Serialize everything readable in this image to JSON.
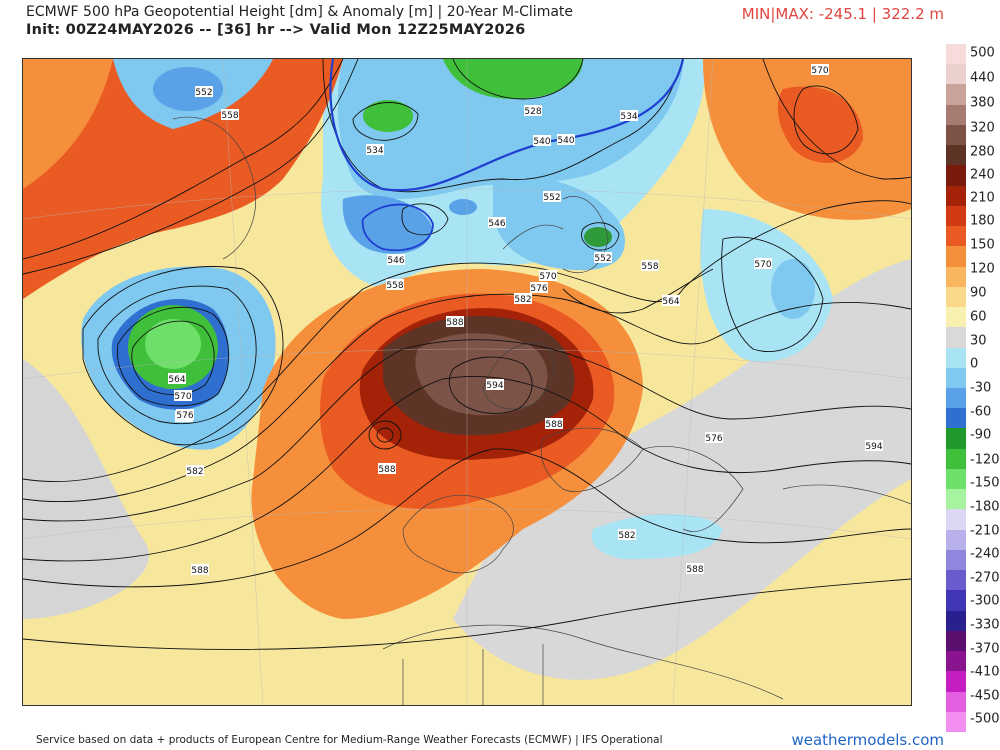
{
  "header": {
    "title": "ECMWF 500 hPa Geopotential Height [dm] & Anomaly [m] | 20-Year M-Climate",
    "init": "Init: 00Z24MAY2026 -- [36] hr --> Valid Mon 12Z25MAY2026",
    "minmax": "MIN|MAX: -245.1 | 322.2 m"
  },
  "colorbar": {
    "labels": [
      "500",
      "440",
      "380",
      "320",
      "280",
      "240",
      "210",
      "180",
      "150",
      "120",
      "90",
      "60",
      "30",
      "0",
      "-30",
      "-60",
      "-90",
      "-120",
      "-150",
      "-180",
      "-210",
      "-240",
      "-270",
      "-300",
      "-330",
      "-370",
      "-410",
      "-450",
      "-500"
    ],
    "colors": [
      "#f7dada",
      "#ead0cc",
      "#c9a39b",
      "#a57b72",
      "#7d5247",
      "#5e3426",
      "#7a1a0a",
      "#a32208",
      "#d03a14",
      "#ea5b24",
      "#f58f3c",
      "#f9b65e",
      "#fbd98a",
      "#f7f0b0",
      "#d9d9d9",
      "#a9e4f5",
      "#7fc8f0",
      "#5aa2e8",
      "#2f6fd0",
      "#1f9a2a",
      "#3fbf3a",
      "#6ee06a",
      "#a8f3a0",
      "#dcd8f3",
      "#b8b0ea",
      "#8f86dd",
      "#6a5ccf",
      "#4136b5",
      "#2a1f8e",
      "#5a0f6e",
      "#8a1490",
      "#c41ec2",
      "#e35ee0",
      "#f28ef0"
    ]
  },
  "map": {
    "contour_labels": [
      "552",
      "558",
      "534",
      "528",
      "534",
      "540",
      "546",
      "546",
      "552",
      "552",
      "540",
      "558",
      "570",
      "570",
      "576",
      "576",
      "582",
      "588",
      "594",
      "588",
      "588",
      "564",
      "570",
      "576",
      "582",
      "588",
      "582",
      "588",
      "576",
      "564",
      "558",
      "570",
      "594"
    ]
  },
  "footer": {
    "source": "Service based on data + products of European Centre for Medium-Range Weather Forecasts (ECMWF) | IFS Operational",
    "brand": "weathermodels.com"
  }
}
